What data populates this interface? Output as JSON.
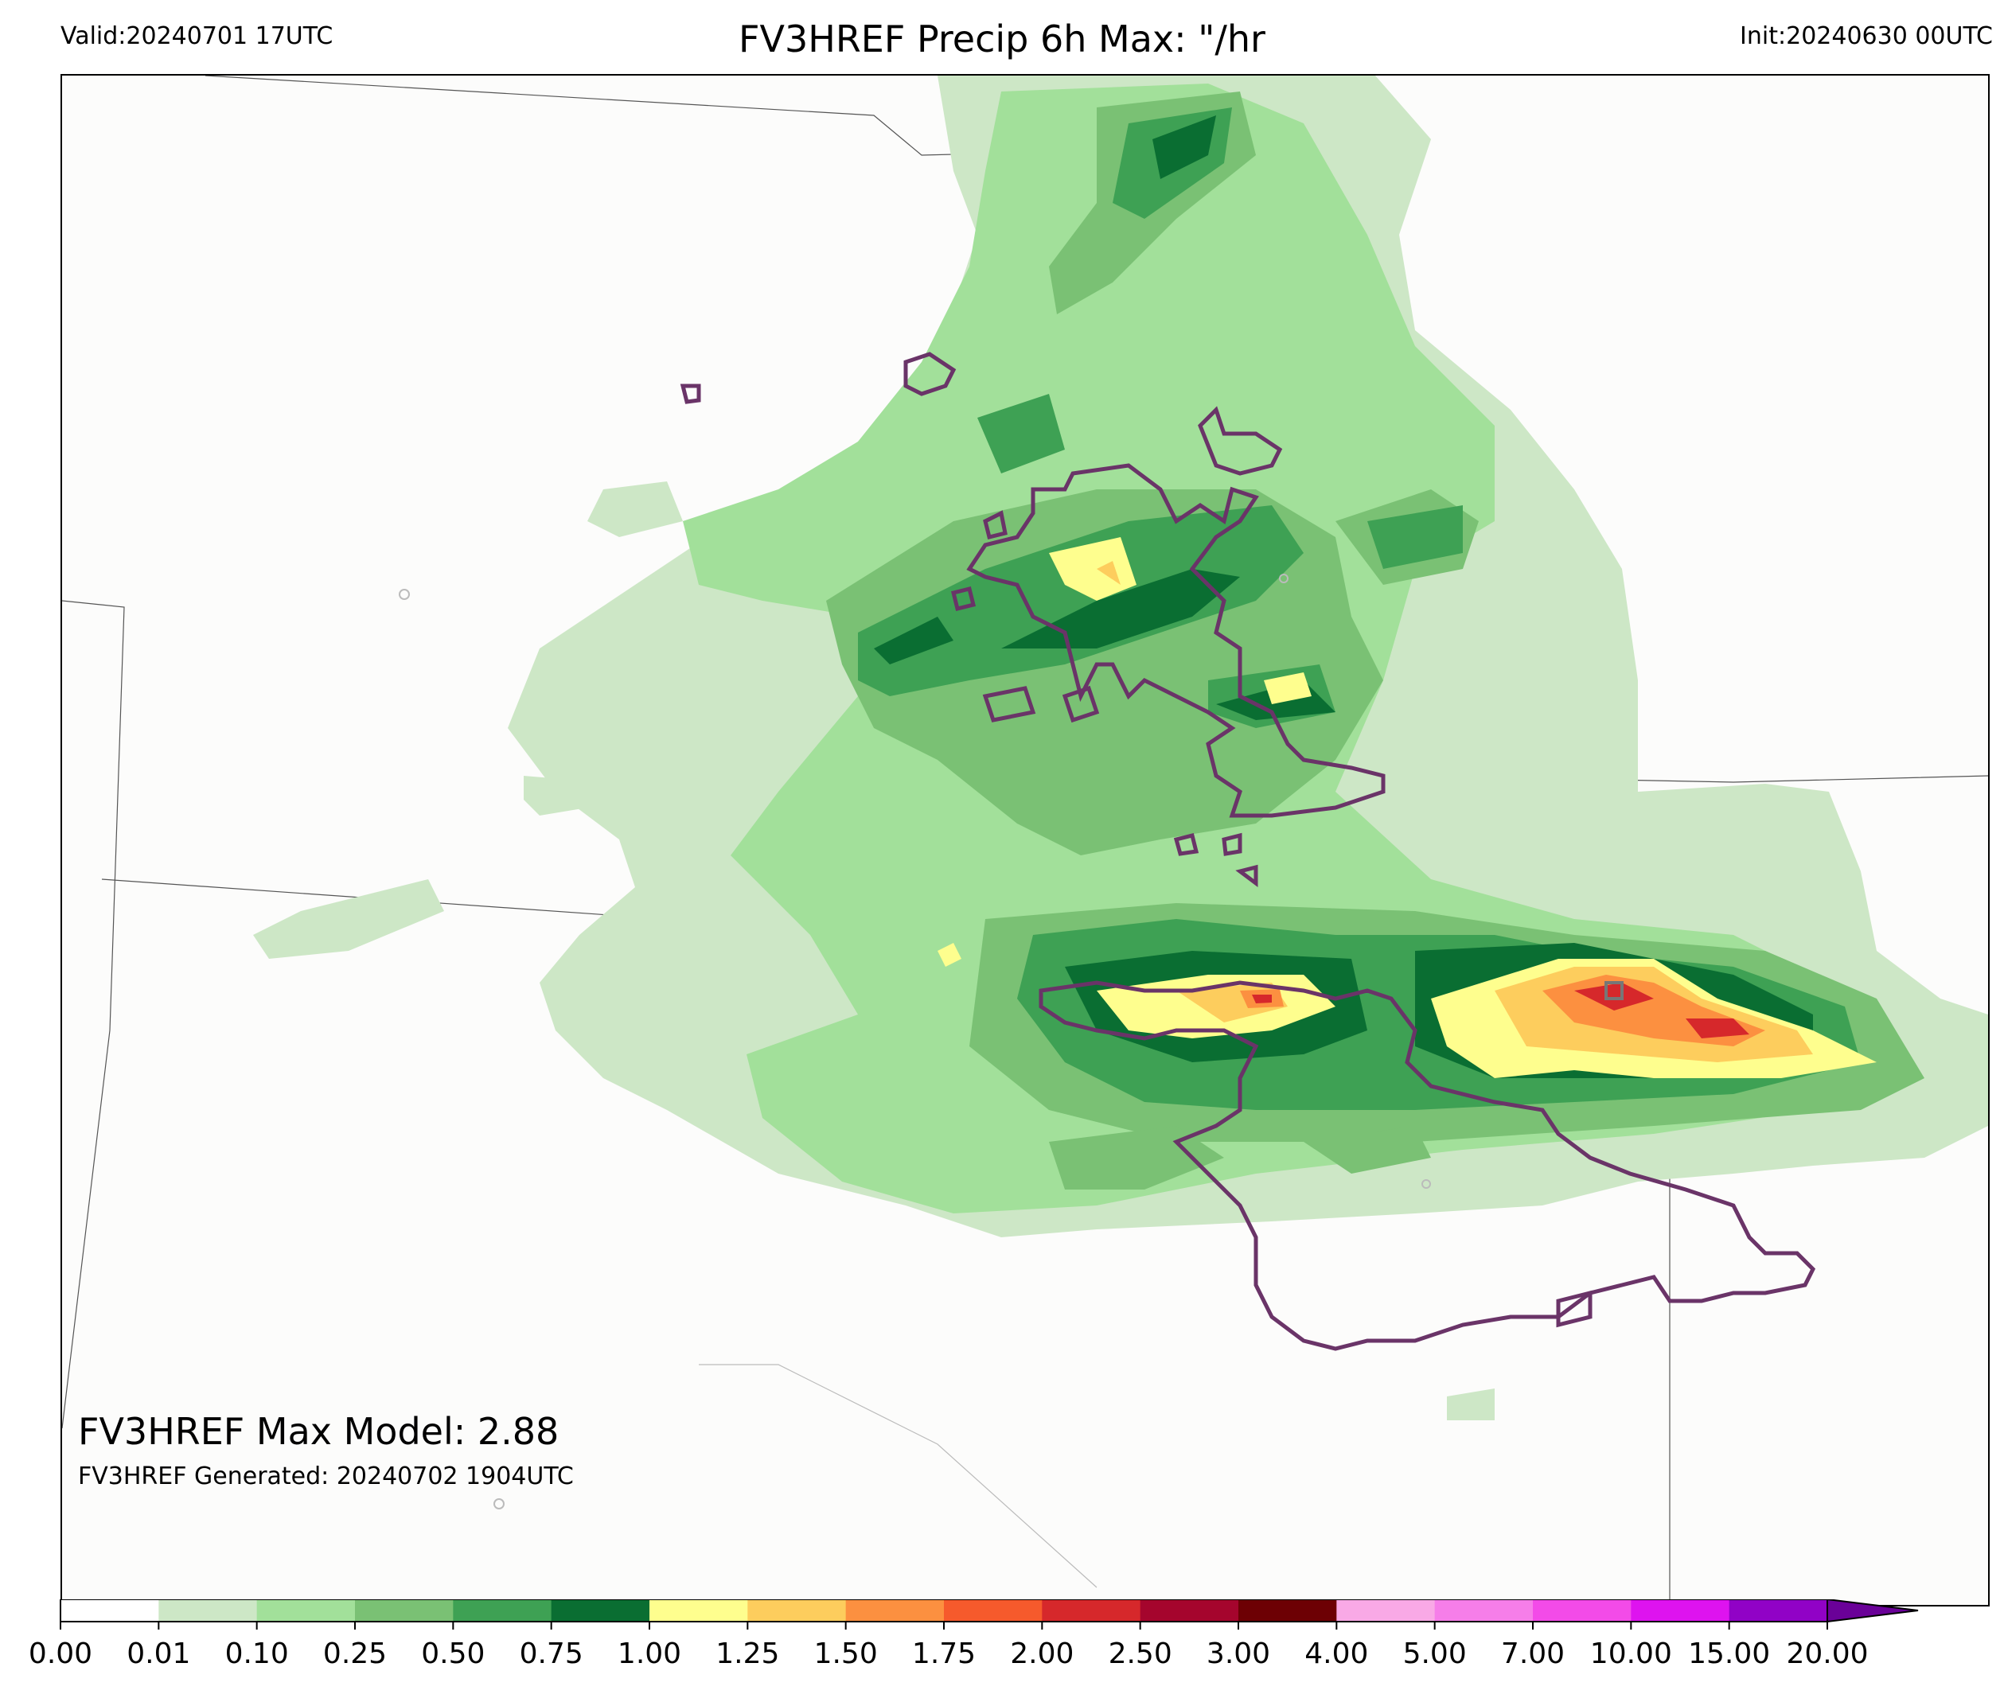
{
  "header": {
    "valid": "Valid:20240701 17UTC",
    "title": "FV3HREF Precip 6h Max: \"/hr",
    "init": "Init:20240630 00UTC"
  },
  "annotations": {
    "max_model": "FV3HREF Max Model: 2.88",
    "generated": "FV3HREF Generated: 20240702 1904UTC"
  },
  "colorbar": {
    "ticks": [
      "0.00",
      "0.01",
      "0.10",
      "0.25",
      "0.50",
      "0.75",
      "1.00",
      "1.25",
      "1.50",
      "1.75",
      "2.00",
      "2.50",
      "3.00",
      "4.00",
      "5.00",
      "7.00",
      "10.00",
      "15.00",
      "20.00"
    ],
    "colors": [
      "#ffffff",
      "#cde7c6",
      "#a2e09a",
      "#7ac174",
      "#3ea154",
      "#0a6e32",
      "#fefe8e",
      "#fdcd5d",
      "#fc9040",
      "#f65a2c",
      "#d6282b",
      "#a5052d",
      "#6d0004",
      "#f9a9e6",
      "#f67ee9",
      "#f34be8",
      "#de13ef",
      "#9102c6"
    ],
    "extend_color": "#6a0198"
  },
  "map_colors": {
    "background": "#fcfcfb",
    "outline": "#6a3468",
    "boundary": "#555555"
  }
}
